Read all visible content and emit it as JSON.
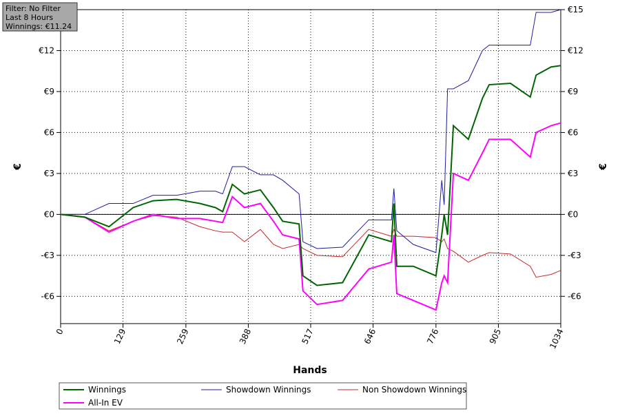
{
  "chart_data": {
    "type": "line",
    "annotations": [
      "Filter: No Filter",
      "Last  8 Hours",
      "Winnings: €11.24"
    ],
    "x_label": "Hands",
    "y_label": "€",
    "y2_label": "€",
    "x": [
      0,
      50,
      100,
      150,
      191,
      240,
      288,
      320,
      335,
      355,
      380,
      413,
      440,
      459,
      493,
      501,
      530,
      583,
      637,
      684,
      689,
      695,
      729,
      776,
      788,
      793,
      800,
      812,
      843,
      872,
      886,
      930,
      971,
      983,
      1014,
      1034
    ],
    "series": [
      {
        "name": "Winnings",
        "color": "#006400",
        "values": [
          0,
          -0.2,
          -0.9,
          0.5,
          1.0,
          1.1,
          0.8,
          0.5,
          0.2,
          2.2,
          1.5,
          1.8,
          0.5,
          -0.5,
          -0.7,
          -4.5,
          -5.2,
          -5.0,
          -1.5,
          -2.0,
          0.8,
          -3.8,
          -3.8,
          -4.5,
          -1.5,
          0,
          -1.5,
          6.5,
          5.5,
          8.5,
          9.5,
          9.6,
          8.6,
          10.2,
          10.8,
          10.9
        ]
      },
      {
        "name": "Showdown Winnings",
        "color": "#1c1ca0",
        "values": [
          0,
          0,
          0.8,
          0.8,
          1.4,
          1.4,
          1.7,
          1.7,
          1.5,
          3.5,
          3.5,
          2.9,
          2.9,
          2.5,
          1.5,
          -2.0,
          -2.5,
          -2.4,
          -0.4,
          -0.4,
          1.9,
          -1.2,
          -2.2,
          -2.8,
          2.5,
          0.7,
          9.2,
          9.2,
          9.8,
          12.0,
          12.4,
          12.4,
          12.4,
          14.8,
          14.8,
          15.0
        ]
      },
      {
        "name": "Non Showdown Winnings",
        "color": "#c82828",
        "values": [
          0,
          -0.2,
          -1.2,
          -0.5,
          -0.1,
          -0.2,
          -0.9,
          -1.2,
          -1.3,
          -1.3,
          -2.0,
          -1.1,
          -2.2,
          -2.5,
          -2.2,
          -2.5,
          -3.0,
          -3.1,
          -1.1,
          -1.6,
          -1.1,
          -1.6,
          -1.6,
          -1.7,
          -2.0,
          -1.8,
          -2.5,
          -2.7,
          -3.5,
          -3.0,
          -2.8,
          -2.9,
          -3.8,
          -4.6,
          -4.4,
          -4.1
        ]
      },
      {
        "name": "All-In EV",
        "color": "#ff00ff",
        "values": [
          0,
          -0.2,
          -1.3,
          -0.5,
          0,
          -0.3,
          -0.3,
          -0.5,
          -0.6,
          1.3,
          0.5,
          0.8,
          -0.5,
          -1.5,
          -1.8,
          -5.6,
          -6.6,
          -6.3,
          -4.0,
          -3.5,
          -1.5,
          -5.8,
          -6.3,
          -7.0,
          -5.0,
          -4.5,
          -5.0,
          3.0,
          2.5,
          4.5,
          5.5,
          5.5,
          4.2,
          6.0,
          6.5,
          6.7
        ]
      }
    ],
    "xlim": [
      0,
      1034
    ],
    "xticks": [
      0,
      129,
      259,
      388,
      517,
      646,
      776,
      905,
      1034
    ],
    "ylim": [
      -8,
      15
    ],
    "yticks": [
      {
        "value": -6,
        "label": "-€6"
      },
      {
        "value": -3,
        "label": "-€3"
      },
      {
        "value": 0,
        "label": "€0"
      },
      {
        "value": 3,
        "label": "€3"
      },
      {
        "value": 6,
        "label": "€6"
      },
      {
        "value": 9,
        "label": "€9"
      },
      {
        "value": 12,
        "label": "€12"
      },
      {
        "value": 15,
        "label": "€15"
      }
    ],
    "grid": true
  }
}
